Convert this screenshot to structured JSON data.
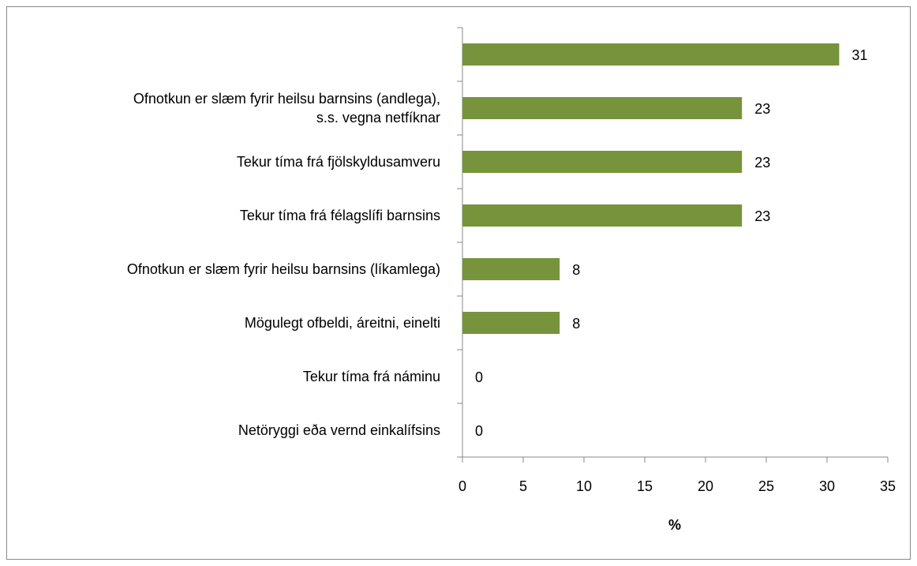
{
  "chart_data": {
    "type": "bar",
    "orientation": "horizontal",
    "categories": [
      null,
      "Ofnotkun er slæm fyrir heilsu barnsins (andlega),\ns.s. vegna netfíknar",
      "Tekur tíma frá fjölskyldusamveru",
      "Tekur tíma frá félagslífi barnsins",
      "Ofnotkun er slæm fyrir heilsu barnsins (líkamlega)",
      "Mögulegt ofbeldi, áreitni, einelti",
      "Tekur tíma frá náminu",
      "Netöryggi eða vernd einkalífsins"
    ],
    "values": [
      31,
      23,
      23,
      23,
      8,
      8,
      0,
      0
    ],
    "color": "#77933c",
    "xlabel": "%",
    "xlim": [
      0,
      35
    ],
    "xticks": [
      0,
      5,
      10,
      15,
      20,
      25,
      30,
      35
    ],
    "grid": false,
    "data_labels": true
  }
}
